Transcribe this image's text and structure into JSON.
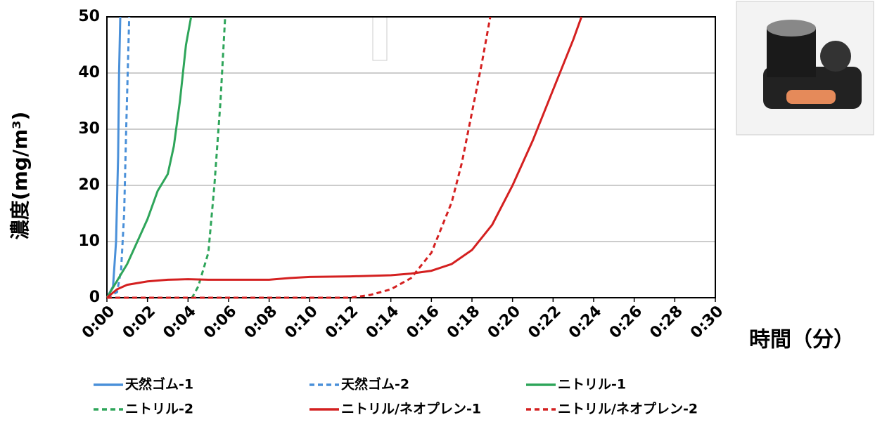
{
  "chart_data": {
    "type": "line",
    "y_label": "濃度(mg/m³)",
    "x_label": "時間（分）",
    "xlim": [
      0,
      30
    ],
    "ylim": [
      0,
      50
    ],
    "xticks": [
      {
        "value": 0,
        "label": "0:00"
      },
      {
        "value": 2,
        "label": "0:02"
      },
      {
        "value": 4,
        "label": "0:04"
      },
      {
        "value": 6,
        "label": "0:06"
      },
      {
        "value": 8,
        "label": "0:08"
      },
      {
        "value": 10,
        "label": "0:10"
      },
      {
        "value": 12,
        "label": "0:12"
      },
      {
        "value": 14,
        "label": "0:14"
      },
      {
        "value": 16,
        "label": "0:16"
      },
      {
        "value": 18,
        "label": "0:18"
      },
      {
        "value": 20,
        "label": "0:20"
      },
      {
        "value": 22,
        "label": "0:22"
      },
      {
        "value": 24,
        "label": "0:24"
      },
      {
        "value": 26,
        "label": "0:26"
      },
      {
        "value": 28,
        "label": "0:28"
      },
      {
        "value": 30,
        "label": "0:30"
      }
    ],
    "yticks": [
      0,
      10,
      20,
      30,
      40,
      50
    ],
    "grid": true,
    "series": [
      {
        "name": "天然ゴム-1",
        "color": "#4a90d9",
        "dash": false,
        "x": [
          0,
          0.3,
          0.45,
          0.55,
          0.6,
          0.66
        ],
        "values": [
          0,
          2,
          10,
          25,
          40,
          50
        ]
      },
      {
        "name": "天然ゴム-2",
        "color": "#4a90d9",
        "dash": true,
        "x": [
          0,
          0.5,
          0.7,
          0.85,
          0.95,
          1.1
        ],
        "values": [
          0,
          1,
          5,
          15,
          30,
          50
        ]
      },
      {
        "name": "ニトリル-1",
        "color": "#2ea55a",
        "dash": false,
        "x": [
          0,
          0.5,
          1,
          1.5,
          2,
          2.5,
          3,
          3.3,
          3.6,
          3.9,
          4.15
        ],
        "values": [
          0,
          3,
          6,
          10,
          14,
          19,
          22,
          27,
          35,
          45,
          50
        ]
      },
      {
        "name": "ニトリル-2",
        "color": "#2ea55a",
        "dash": true,
        "x": [
          0,
          4.2,
          4.5,
          5,
          5.3,
          5.6,
          5.83
        ],
        "values": [
          0,
          0,
          2,
          8,
          20,
          35,
          50
        ]
      },
      {
        "name": "ニトリル/ネオプレン-1",
        "color": "#d42020",
        "dash": false,
        "x": [
          0,
          0.5,
          1,
          2,
          3,
          4,
          5,
          6,
          7,
          8,
          9,
          10,
          12,
          14,
          15,
          16,
          17,
          18,
          19,
          20,
          21,
          22,
          23,
          23.4
        ],
        "values": [
          0,
          1.5,
          2.3,
          2.9,
          3.2,
          3.3,
          3.2,
          3.2,
          3.2,
          3.2,
          3.5,
          3.7,
          3.8,
          4,
          4.3,
          4.8,
          6,
          8.5,
          13,
          20,
          28,
          37,
          46,
          50
        ]
      },
      {
        "name": "ニトリル/ネオプレン-2",
        "color": "#d42020",
        "dash": true,
        "x": [
          0,
          12,
          13,
          14,
          15,
          16,
          17,
          17.5,
          18,
          18.5,
          18.9
        ],
        "values": [
          0,
          0,
          0.5,
          1.5,
          3.5,
          8,
          17,
          24,
          33,
          42,
          50
        ]
      }
    ]
  }
}
